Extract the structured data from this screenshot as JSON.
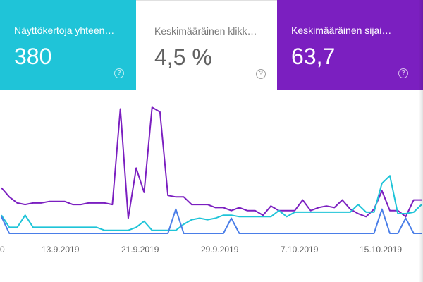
{
  "cards": [
    {
      "label": "Näyttökertoja yhteen…",
      "value": "380",
      "color": "#1fc4d8"
    },
    {
      "label": "Keskimääräinen klikk…",
      "value": "4,5 %",
      "color": "#ffffff"
    },
    {
      "label": "Keskimääräinen sijai…",
      "value": "63,7",
      "color": "#7b1fc0"
    }
  ],
  "help_icon": "help-circle-icon",
  "chart_data": {
    "type": "line",
    "x_ticks": [
      "0",
      "13.9.2019",
      "21.9.2019",
      "29.9.2019",
      "7.10.2019",
      "15.10.2019"
    ],
    "series": [
      {
        "color": "#7b1fc0",
        "values": [
          3.0,
          2.4,
          2.0,
          1.9,
          2.0,
          2.0,
          2.1,
          2.1,
          2.1,
          1.9,
          1.9,
          2.0,
          2.0,
          2.0,
          1.9,
          8.2,
          1.0,
          4.3,
          2.7,
          8.3,
          8.0,
          2.5,
          2.4,
          2.4,
          1.9,
          1.9,
          1.9,
          1.7,
          1.7,
          1.5,
          1.7,
          1.5,
          1.5,
          1.2,
          1.8,
          1.5,
          1.5,
          1.5,
          2.2,
          1.5,
          1.7,
          1.8,
          1.7,
          2.2,
          1.6,
          1.3,
          1.1,
          1.6,
          2.8,
          1.5,
          1.5,
          1.1,
          2.2,
          2.2
        ]
      },
      {
        "color": "#1fc4d8",
        "values": [
          1.2,
          0.4,
          0.4,
          1.2,
          0.4,
          0.4,
          0.4,
          0.4,
          0.4,
          0.4,
          0.4,
          0.4,
          0.4,
          0.2,
          0.2,
          0.2,
          0.2,
          0.4,
          0.8,
          0.2,
          0.2,
          0.2,
          0.2,
          0.6,
          0.9,
          1.0,
          0.9,
          1.0,
          1.2,
          1.2,
          1.1,
          1.1,
          1.1,
          1.1,
          1.1,
          1.5,
          1.1,
          1.4,
          1.4,
          1.4,
          1.4,
          1.4,
          1.4,
          1.4,
          1.4,
          1.9,
          1.4,
          1.4,
          3.3,
          3.8,
          1.3,
          1.3,
          1.4,
          1.9
        ]
      },
      {
        "color": "#4a7ee8",
        "values": [
          1.1,
          0,
          0,
          0,
          0,
          0,
          0,
          0,
          0,
          0,
          0,
          0,
          0,
          0,
          0,
          0,
          0,
          0,
          0,
          0,
          0,
          0,
          1.6,
          0,
          0,
          0,
          0,
          0,
          0,
          1.0,
          0,
          0,
          0,
          0,
          0,
          0,
          0,
          0,
          0,
          0,
          0,
          0,
          0,
          0,
          0,
          0,
          0,
          0,
          1.6,
          0,
          0,
          1.0,
          0,
          0
        ]
      }
    ]
  }
}
